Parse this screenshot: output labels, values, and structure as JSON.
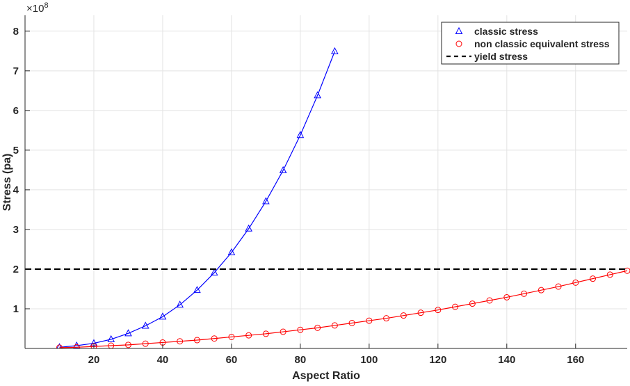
{
  "chart_data": {
    "type": "line",
    "title": "",
    "xlabel": "Aspect Ratio",
    "ylabel": "Stress (pa)",
    "y_exponent_label": "×10",
    "y_exponent": "8",
    "xlim": [
      0,
      175
    ],
    "ylim": [
      0,
      8.4
    ],
    "y_scale_factor": 100000000,
    "xticks": [
      20,
      40,
      60,
      80,
      100,
      120,
      140,
      160
    ],
    "yticks": [
      1,
      2,
      3,
      4,
      5,
      6,
      7,
      8
    ],
    "grid": true,
    "legend_position": "top-right",
    "series": [
      {
        "name": "classic stress",
        "color": "#0000ff",
        "marker": "triangle",
        "x": [
          10,
          15,
          20,
          25,
          30,
          35,
          40,
          45,
          50,
          55,
          60,
          65,
          70,
          75,
          80,
          85,
          90
        ],
        "y": [
          0.03,
          0.07,
          0.13,
          0.23,
          0.38,
          0.57,
          0.8,
          1.1,
          1.47,
          1.91,
          2.42,
          3.02,
          3.71,
          4.49,
          5.38,
          6.38,
          7.49
        ]
      },
      {
        "name": "non classic equivalent stress",
        "color": "#ff0000",
        "marker": "circle",
        "x": [
          10,
          15,
          20,
          25,
          30,
          35,
          40,
          45,
          50,
          55,
          60,
          65,
          70,
          75,
          80,
          85,
          90,
          95,
          100,
          105,
          110,
          115,
          120,
          125,
          130,
          135,
          140,
          145,
          150,
          155,
          160,
          165,
          170,
          175
        ],
        "y": [
          0.02,
          0.03,
          0.05,
          0.07,
          0.09,
          0.12,
          0.15,
          0.18,
          0.21,
          0.25,
          0.29,
          0.33,
          0.37,
          0.42,
          0.47,
          0.52,
          0.58,
          0.64,
          0.7,
          0.76,
          0.83,
          0.9,
          0.97,
          1.05,
          1.13,
          1.21,
          1.29,
          1.38,
          1.47,
          1.56,
          1.66,
          1.76,
          1.86,
          1.96
        ]
      },
      {
        "name": "yield stress",
        "color": "#000000",
        "style": "dashed",
        "x": [
          0,
          175
        ],
        "y": [
          2,
          2
        ]
      }
    ]
  }
}
